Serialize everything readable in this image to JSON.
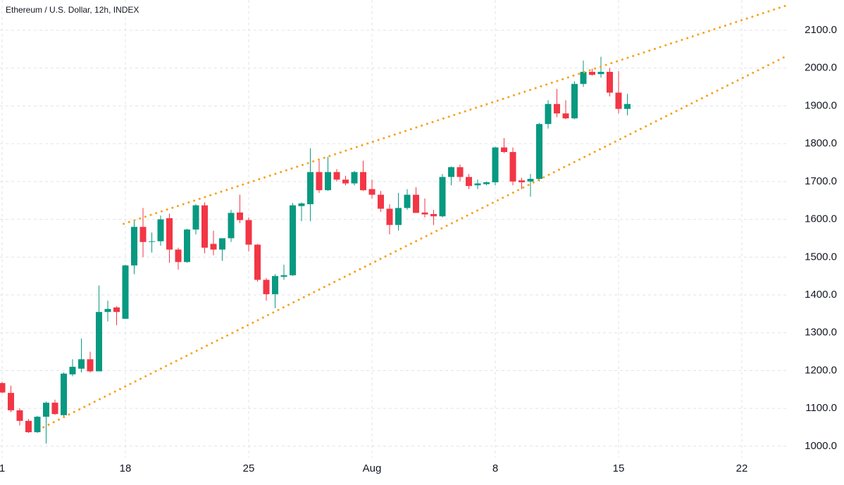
{
  "chart_data": {
    "type": "candlestick",
    "title": "Ethereum / U.S. Dollar, 12h, INDEX",
    "categories": [
      "1",
      null,
      null,
      null,
      null,
      null,
      null,
      null,
      null,
      null,
      null,
      null,
      null,
      null,
      "18",
      null,
      null,
      null,
      null,
      null,
      null,
      null,
      null,
      null,
      null,
      null,
      null,
      null,
      "25",
      null,
      null,
      null,
      null,
      null,
      null,
      null,
      null,
      null,
      null,
      null,
      null,
      null,
      "Aug",
      null,
      null,
      null,
      null,
      null,
      null,
      null,
      null,
      null,
      null,
      null,
      null,
      null,
      "8",
      null,
      null,
      null,
      null,
      null,
      null,
      null,
      null,
      null,
      null,
      null,
      null,
      null,
      "15",
      null,
      null,
      null,
      null,
      null,
      null,
      null,
      null,
      null,
      null,
      null,
      null,
      null,
      "22",
      null,
      null,
      null,
      null
    ],
    "open": [
      1167,
      1141,
      1095,
      1067,
      1037,
      1078,
      1115,
      1082,
      1190,
      1205,
      1230,
      1198,
      1355,
      1367,
      1337,
      1478,
      1580,
      1542,
      1542,
      1603,
      1520,
      1487,
      1573,
      1637,
      1535,
      1520,
      1550,
      1618,
      1598,
      1533,
      1440,
      1402,
      1448,
      1452,
      1635,
      1640,
      1725,
      1677,
      1725,
      1705,
      1695,
      1725,
      1680,
      1665,
      1628,
      1585,
      1630,
      1665,
      1618,
      1614,
      1608,
      1712,
      1738,
      1712,
      1690,
      1693,
      1698,
      1790,
      1778,
      1703,
      1700,
      1707,
      1852,
      1905,
      1880,
      1867,
      1958,
      1990,
      1984,
      1990,
      1935,
      1892,
      null,
      null,
      null,
      null,
      null,
      null,
      null,
      null,
      null,
      null,
      null,
      null,
      null,
      null,
      null,
      null,
      null
    ],
    "high": [
      1170,
      1160,
      1100,
      1072,
      1080,
      1118,
      1123,
      1195,
      1230,
      1285,
      1250,
      1425,
      1385,
      1370,
      1480,
      1597,
      1630,
      1565,
      1610,
      1615,
      1525,
      1575,
      1640,
      1645,
      1570,
      1545,
      1625,
      1665,
      1605,
      1535,
      1445,
      1455,
      1480,
      1643,
      1645,
      1788,
      1755,
      1765,
      1733,
      1715,
      1728,
      1755,
      1705,
      1675,
      1640,
      1670,
      1680,
      1685,
      1655,
      1625,
      1720,
      1740,
      1745,
      1720,
      1705,
      1700,
      1792,
      1815,
      1790,
      1710,
      1720,
      1855,
      1915,
      1945,
      1915,
      1965,
      2020,
      1998,
      2030,
      2000,
      1992,
      1932,
      null,
      null,
      null,
      null,
      null,
      null,
      null,
      null,
      null,
      null,
      null,
      null,
      null,
      null,
      null,
      null,
      null
    ],
    "low": [
      1140,
      1090,
      1055,
      1035,
      1035,
      1007,
      1083,
      1075,
      1185,
      1195,
      1195,
      1198,
      1330,
      1320,
      1337,
      1455,
      1500,
      1512,
      1530,
      1485,
      1467,
      1485,
      1560,
      1510,
      1505,
      1490,
      1540,
      1590,
      1515,
      1435,
      1385,
      1365,
      1440,
      1450,
      1595,
      1595,
      1670,
      1675,
      1700,
      1690,
      1690,
      1675,
      1655,
      1620,
      1560,
      1570,
      1625,
      1620,
      1605,
      1585,
      1605,
      1690,
      1700,
      1680,
      1680,
      1690,
      1690,
      1775,
      1690,
      1680,
      1660,
      1700,
      1840,
      1870,
      1865,
      1865,
      1950,
      1980,
      1975,
      1925,
      1880,
      1875,
      null,
      null,
      null,
      null,
      null,
      null,
      null,
      null,
      null,
      null,
      null,
      null,
      null,
      null,
      null,
      null,
      null
    ],
    "close": [
      1142,
      1095,
      1067,
      1037,
      1078,
      1115,
      1085,
      1192,
      1210,
      1230,
      1198,
      1355,
      1363,
      1355,
      1478,
      1580,
      1540,
      1542,
      1600,
      1520,
      1487,
      1573,
      1637,
      1525,
      1520,
      1550,
      1617,
      1598,
      1533,
      1440,
      1402,
      1450,
      1452,
      1637,
      1642,
      1725,
      1677,
      1725,
      1705,
      1695,
      1725,
      1677,
      1665,
      1628,
      1585,
      1630,
      1665,
      1617,
      1613,
      1608,
      1712,
      1738,
      1712,
      1688,
      1695,
      1698,
      1790,
      1778,
      1700,
      1698,
      1707,
      1852,
      1905,
      1880,
      1867,
      1958,
      1990,
      1982,
      1990,
      1935,
      1892,
      1905,
      null,
      null,
      null,
      null,
      null,
      null,
      null,
      null,
      null,
      null,
      null,
      null,
      null,
      null,
      null,
      null,
      null
    ],
    "up_color": "#089981",
    "down_color": "#f23645",
    "ylim": [
      970,
      2180
    ],
    "yticks": [
      {
        "value": 1000,
        "label": "1000.0"
      },
      {
        "value": 1100,
        "label": "1100.0"
      },
      {
        "value": 1200,
        "label": "1200.0"
      },
      {
        "value": 1300,
        "label": "1300.0"
      },
      {
        "value": 1400,
        "label": "1400.0"
      },
      {
        "value": 1500,
        "label": "1500.0"
      },
      {
        "value": 1600,
        "label": "1600.0"
      },
      {
        "value": 1700,
        "label": "1700.0"
      },
      {
        "value": 1800,
        "label": "1800.0"
      },
      {
        "value": 1900,
        "label": "1900.0"
      },
      {
        "value": 2000,
        "label": "2000.0"
      },
      {
        "value": 2100,
        "label": "2100.0"
      }
    ],
    "grid": true,
    "trendlines": [
      {
        "x": [
          13.8,
          89
        ],
        "y": [
          1588,
          2165
        ],
        "color": "#f7a21b"
      },
      {
        "x": [
          4.7,
          89
        ],
        "y": [
          1050,
          2031
        ],
        "color": "#f7a21b"
      }
    ]
  }
}
